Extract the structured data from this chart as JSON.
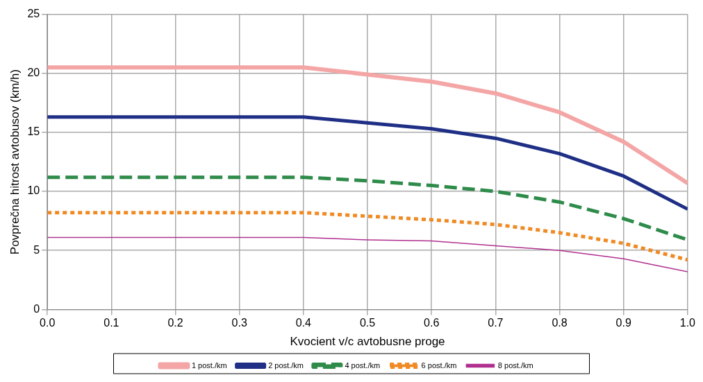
{
  "chart_data": {
    "type": "line",
    "xlabel": "Kvocient v/c avtobusne proge",
    "ylabel": "Povprečna hitrost avtobusov (km/h)",
    "x": [
      0,
      0.1,
      0.2,
      0.3,
      0.4,
      0.5,
      0.6,
      0.7,
      0.8,
      0.9,
      1.0
    ],
    "series": [
      {
        "name": "1 post./km",
        "color": "#f4a6a6",
        "line_style": "solid",
        "values": [
          20.5,
          20.5,
          20.5,
          20.5,
          20.5,
          19.9,
          19.3,
          18.3,
          16.7,
          14.2,
          10.7
        ]
      },
      {
        "name": "2 post./km",
        "color": "#1f2f86",
        "line_style": "solid",
        "values": [
          16.3,
          16.3,
          16.3,
          16.3,
          16.3,
          15.8,
          15.3,
          14.5,
          13.2,
          11.3,
          8.5
        ]
      },
      {
        "name": "4 post./km",
        "color": "#2e8b4a",
        "line_style": "dashed",
        "values": [
          11.2,
          11.2,
          11.2,
          11.2,
          11.2,
          10.9,
          10.5,
          10.0,
          9.1,
          7.7,
          5.9
        ]
      },
      {
        "name": "6 post./km",
        "color": "#f08a24",
        "line_style": "dotted",
        "values": [
          8.2,
          8.2,
          8.2,
          8.2,
          8.2,
          7.9,
          7.6,
          7.2,
          6.5,
          5.6,
          4.2
        ]
      },
      {
        "name": "8 post./km",
        "color": "#b0308f",
        "line_style": "solid",
        "values": [
          6.1,
          6.1,
          6.1,
          6.1,
          6.1,
          5.9,
          5.8,
          5.4,
          5.0,
          4.3,
          3.2
        ]
      }
    ],
    "xlim": [
      0,
      1
    ],
    "xticks": [
      {
        "value": 0,
        "label": "0.0"
      },
      {
        "value": 0.1,
        "label": "0.1"
      },
      {
        "value": 0.2,
        "label": "0.2"
      },
      {
        "value": 0.3,
        "label": "0.3"
      },
      {
        "value": 0.4,
        "label": "0.4"
      },
      {
        "value": 0.5,
        "label": "0.5"
      },
      {
        "value": 0.6,
        "label": "0.6"
      },
      {
        "value": 0.7,
        "label": "0.7"
      },
      {
        "value": 0.8,
        "label": "0.8"
      },
      {
        "value": 0.9,
        "label": "0.9"
      },
      {
        "value": 1,
        "label": "1.0"
      }
    ],
    "ylim": [
      0,
      25
    ],
    "yticks": [
      0,
      5,
      10,
      15,
      20,
      25
    ],
    "grid": true,
    "legend": "bottom",
    "marker": "none"
  }
}
